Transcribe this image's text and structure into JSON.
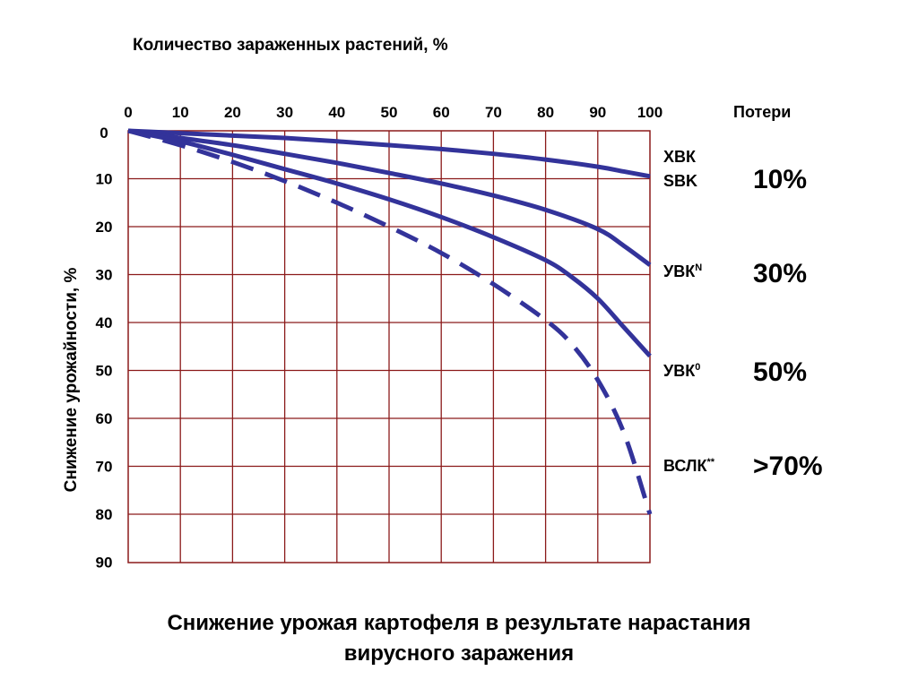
{
  "chart_data": {
    "type": "line",
    "title": "Снижение урожая картофеля в результате нарастания",
    "title_line2": "вирусного заражения",
    "xlabel": "Количество зараженных растений, %",
    "ylabel": "Снижение урожайности, %",
    "x_ticks": [
      "0",
      "10",
      "20",
      "30",
      "40",
      "50",
      "60",
      "70",
      "80",
      "90",
      "100"
    ],
    "y_ticks": [
      "0",
      "10",
      "20",
      "30",
      "40",
      "50",
      "60",
      "70",
      "80",
      "90"
    ],
    "xlim": [
      0,
      100
    ],
    "ylim": [
      0,
      90
    ],
    "y_inverted": true,
    "grid": true,
    "grid_color": "#8b1a1a",
    "series_color": "#33339a",
    "losses_header": "Потери",
    "series": [
      {
        "label_lines": [
          "ХВК",
          "SBK"
        ],
        "sup": "",
        "loss": "10%",
        "dashed": false,
        "x": [
          0,
          10,
          20,
          30,
          40,
          50,
          60,
          70,
          80,
          90,
          95,
          100
        ],
        "y": [
          0,
          0.5,
          1,
          1.5,
          2.2,
          3,
          3.8,
          4.8,
          6,
          7.5,
          8.5,
          9.5
        ]
      },
      {
        "label_lines": [
          "УВК"
        ],
        "sup": "N",
        "loss": "30%",
        "dashed": false,
        "x": [
          0,
          10,
          20,
          30,
          40,
          50,
          60,
          70,
          80,
          90,
          95,
          100
        ],
        "y": [
          0,
          1.5,
          3,
          4.8,
          6.7,
          8.8,
          11,
          13.5,
          16.5,
          20.5,
          24,
          28
        ]
      },
      {
        "label_lines": [
          "УВК"
        ],
        "sup": "0",
        "loss": "50%",
        "dashed": false,
        "x": [
          0,
          10,
          20,
          30,
          40,
          50,
          60,
          70,
          80,
          85,
          90,
          95,
          100
        ],
        "y": [
          0,
          2.2,
          5,
          8,
          11,
          14.3,
          18,
          22.2,
          27,
          30.5,
          35,
          41,
          47
        ]
      },
      {
        "label_lines": [
          "ВСЛК"
        ],
        "sup": "**",
        "loss": ">70%",
        "dashed": true,
        "x": [
          0,
          10,
          20,
          30,
          40,
          50,
          60,
          70,
          80,
          85,
          90,
          95,
          100
        ],
        "y": [
          0,
          3,
          6.5,
          10.5,
          15,
          20,
          25.5,
          32,
          39.5,
          44.5,
          52,
          63,
          80
        ]
      }
    ]
  }
}
